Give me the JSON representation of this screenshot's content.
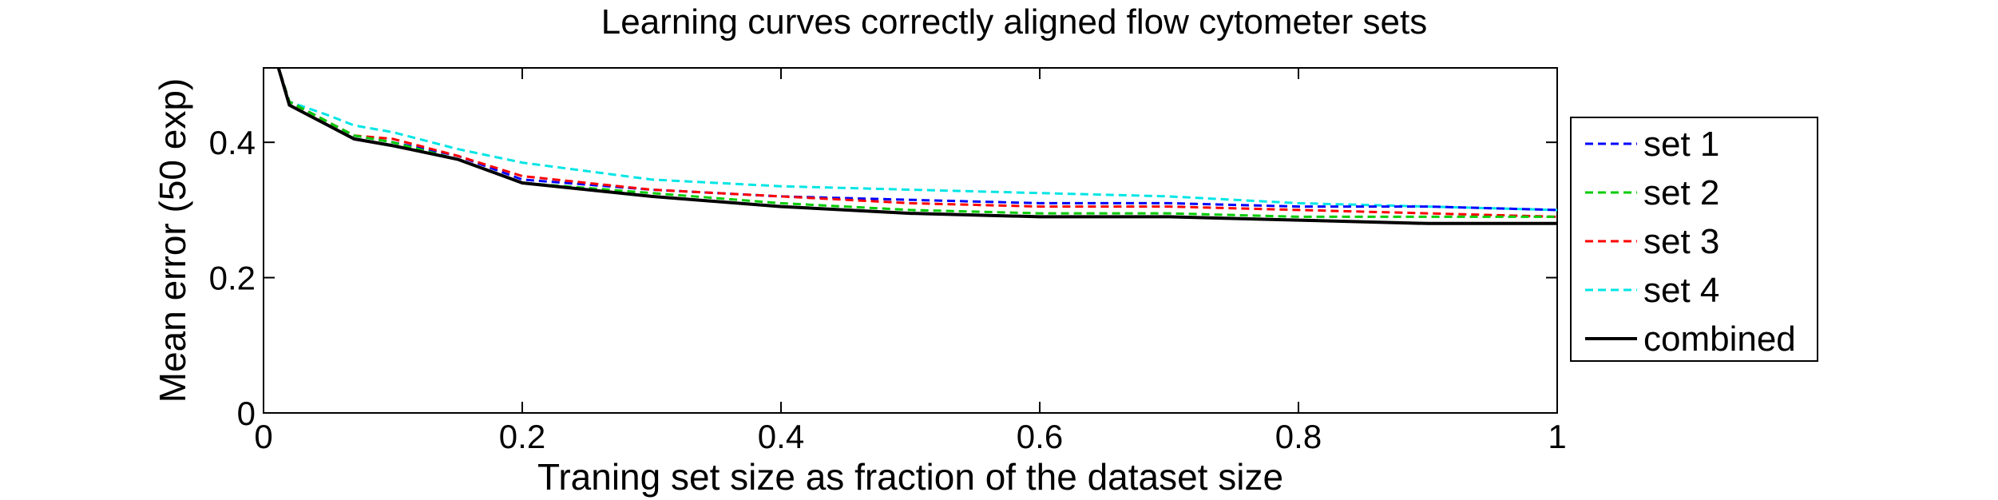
{
  "chart_data": {
    "type": "line",
    "title": "Learning curves correctly aligned flow cytometer sets",
    "xlabel": "Traning set size as fraction of the dataset size",
    "ylabel": "Mean error (50 exp)",
    "xlim": [
      0,
      1
    ],
    "ylim": [
      0,
      0.51
    ],
    "xticks": [
      0,
      0.2,
      0.4,
      0.6,
      0.8,
      1
    ],
    "xtick_labels": [
      "0",
      "0.2",
      "0.4",
      "0.6",
      "0.8",
      "1"
    ],
    "yticks": [
      0,
      0.2,
      0.4
    ],
    "ytick_labels": [
      "0",
      "0.2",
      "0.4"
    ],
    "grid": false,
    "legend_position": "outside-right",
    "x": [
      0.01,
      0.02,
      0.05,
      0.07,
      0.1,
      0.15,
      0.2,
      0.3,
      0.4,
      0.5,
      0.6,
      0.7,
      0.8,
      0.9,
      1.0
    ],
    "series": [
      {
        "name": "set 1",
        "color": "#0000ff",
        "dash": "dashed",
        "values": [
          0.52,
          0.46,
          0.43,
          0.41,
          0.4,
          0.38,
          0.345,
          0.33,
          0.32,
          0.315,
          0.31,
          0.31,
          0.305,
          0.305,
          0.3
        ]
      },
      {
        "name": "set 2",
        "color": "#00cc00",
        "dash": "dashed",
        "values": [
          0.52,
          0.46,
          0.43,
          0.41,
          0.4,
          0.375,
          0.34,
          0.325,
          0.31,
          0.3,
          0.295,
          0.295,
          0.29,
          0.29,
          0.29
        ]
      },
      {
        "name": "set 3",
        "color": "#ff0000",
        "dash": "dashed",
        "values": [
          0.52,
          0.46,
          0.43,
          0.41,
          0.405,
          0.38,
          0.35,
          0.33,
          0.32,
          0.31,
          0.305,
          0.305,
          0.3,
          0.295,
          0.29
        ]
      },
      {
        "name": "set 4",
        "color": "#00e5e5",
        "dash": "dashed",
        "values": [
          0.52,
          0.46,
          0.44,
          0.425,
          0.415,
          0.39,
          0.37,
          0.345,
          0.335,
          0.33,
          0.325,
          0.32,
          0.31,
          0.305,
          0.3
        ]
      },
      {
        "name": "combined",
        "color": "#000000",
        "dash": "solid",
        "values": [
          0.52,
          0.455,
          0.425,
          0.405,
          0.395,
          0.375,
          0.34,
          0.32,
          0.305,
          0.295,
          0.29,
          0.29,
          0.285,
          0.28,
          0.28
        ]
      }
    ]
  }
}
